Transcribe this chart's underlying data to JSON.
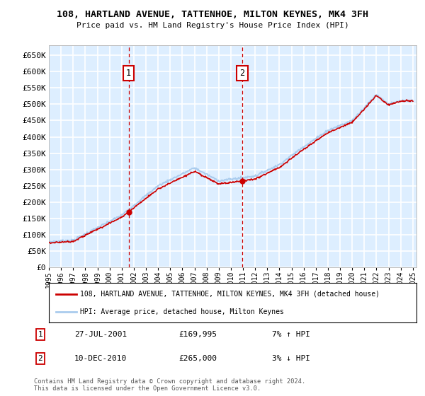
{
  "title": "108, HARTLAND AVENUE, TATTENHOE, MILTON KEYNES, MK4 3FH",
  "subtitle": "Price paid vs. HM Land Registry's House Price Index (HPI)",
  "plot_bg_color": "#ddeeff",
  "grid_color": "#ffffff",
  "ylim": [
    0,
    680000
  ],
  "yticks": [
    0,
    50000,
    100000,
    150000,
    200000,
    250000,
    300000,
    350000,
    400000,
    450000,
    500000,
    550000,
    600000,
    650000
  ],
  "x_start_year": 1995,
  "x_end_year": 2025,
  "legend_line1": "108, HARTLAND AVENUE, TATTENHOE, MILTON KEYNES, MK4 3FH (detached house)",
  "legend_line2": "HPI: Average price, detached house, Milton Keynes",
  "sale1_date": "27-JUL-2001",
  "sale1_price": 169995,
  "sale1_hpi": "7% ↑ HPI",
  "sale1_x": 2001.57,
  "sale2_date": "10-DEC-2010",
  "sale2_price": 265000,
  "sale2_hpi": "3% ↓ HPI",
  "sale2_x": 2010.94,
  "copyright": "Contains HM Land Registry data © Crown copyright and database right 2024.\nThis data is licensed under the Open Government Licence v3.0.",
  "red_line_color": "#cc0000",
  "blue_line_color": "#aaccee",
  "dashed_line_color": "#cc0000"
}
